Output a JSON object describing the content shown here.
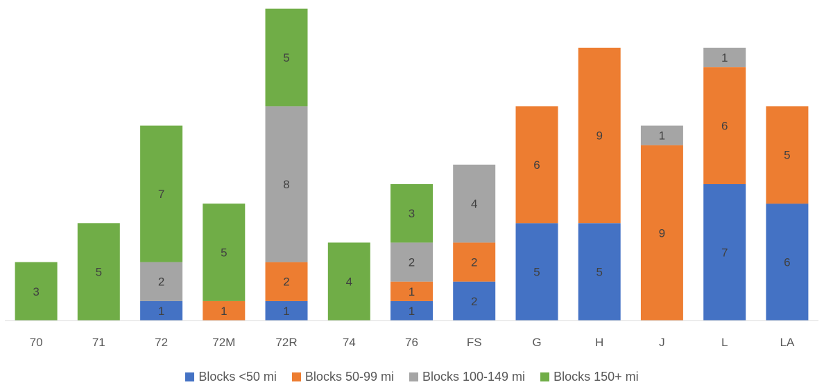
{
  "chart_data": {
    "type": "bar",
    "stacked": true,
    "categories": [
      "70",
      "71",
      "72",
      "72M",
      "72R",
      "74",
      "76",
      "FS",
      "G",
      "H",
      "J",
      "L",
      "LA"
    ],
    "series": [
      {
        "name": "Blocks <50 mi",
        "color": "#4472C4",
        "values": [
          0,
          0,
          1,
          0,
          1,
          0,
          1,
          2,
          5,
          5,
          0,
          7,
          6
        ]
      },
      {
        "name": "Blocks 50-99 mi",
        "color": "#ED7D31",
        "values": [
          0,
          0,
          0,
          1,
          2,
          0,
          1,
          2,
          6,
          9,
          9,
          6,
          5
        ]
      },
      {
        "name": "Blocks 100-149 mi",
        "color": "#A5A5A5",
        "values": [
          0,
          0,
          2,
          0,
          8,
          0,
          2,
          4,
          0,
          0,
          1,
          1,
          0
        ]
      },
      {
        "name": "Blocks 150+ mi",
        "color": "#70AD47",
        "values": [
          3,
          5,
          7,
          5,
          5,
          4,
          3,
          0,
          0,
          0,
          0,
          0,
          0
        ]
      }
    ],
    "ylim": [
      0,
      16
    ],
    "grid": false,
    "data_labels": true,
    "legend_position": "bottom"
  }
}
